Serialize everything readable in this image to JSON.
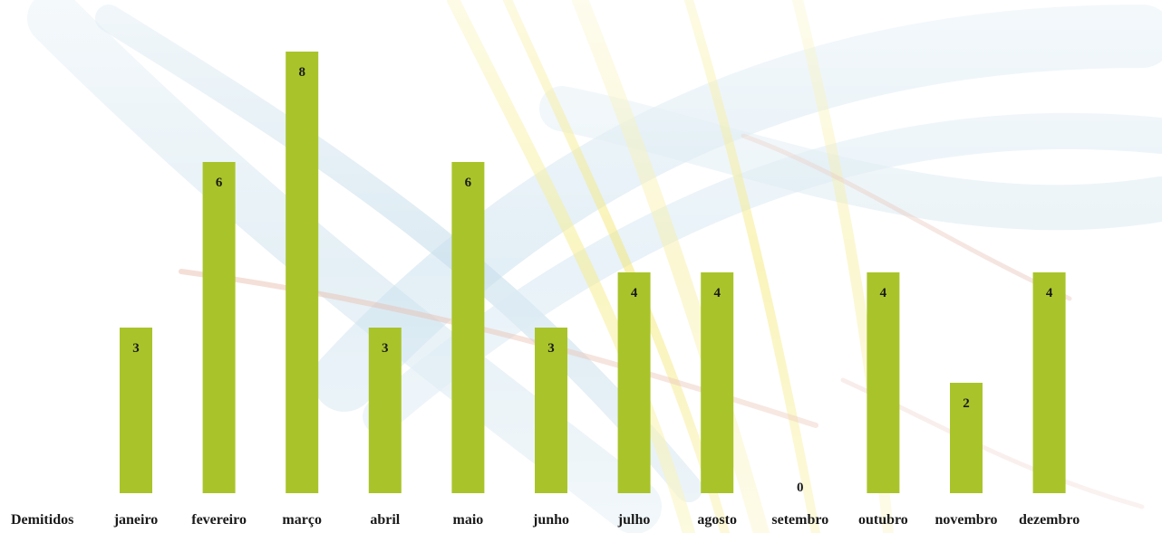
{
  "chart_data": {
    "type": "bar",
    "series": [
      {
        "name": "Demitidos",
        "values": [
          3,
          6,
          8,
          3,
          6,
          3,
          4,
          4,
          0,
          4,
          2,
          4
        ]
      }
    ],
    "categories": [
      "janeiro",
      "fevereiro",
      "março",
      "abril",
      "maio",
      "junho",
      "julho",
      "agosto",
      "setembro",
      "outubro",
      "novembro",
      "dezembro"
    ],
    "ylim": [
      0,
      8
    ],
    "grid": false,
    "data_labels": true,
    "colors": {
      "bar": "#a9c42a",
      "text": "#1a1a1a"
    }
  }
}
